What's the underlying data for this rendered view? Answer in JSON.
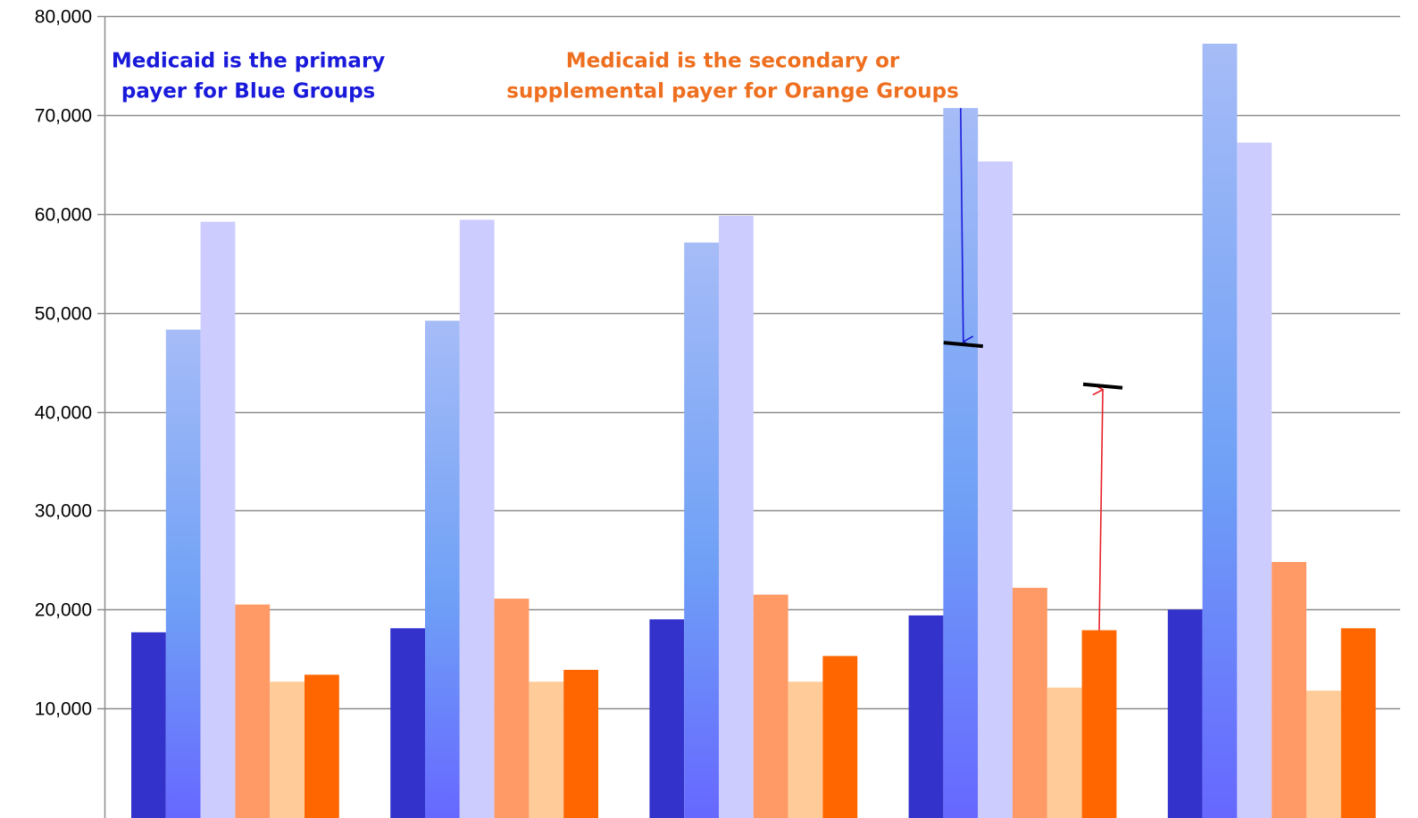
{
  "chart_data": {
    "type": "bar",
    "title": "",
    "xlabel": "",
    "ylabel": "",
    "ylim": [
      0,
      80000
    ],
    "yticks": [
      10000,
      20000,
      30000,
      40000,
      50000,
      60000,
      70000,
      80000
    ],
    "ytick_labels": [
      "10,000",
      "20,000",
      "30,000",
      "40,000",
      "50,000",
      "60,000",
      "70,000",
      "80,000"
    ],
    "grid": true,
    "legend": "none",
    "categories": [
      "",
      "",
      "",
      "",
      ""
    ],
    "series": [
      {
        "color": "#3333cc",
        "gradient": false,
        "values": [
          17700,
          18100,
          19000,
          19400,
          20000
        ]
      },
      {
        "color": "#6f9bf5",
        "gradient": true,
        "values": [
          48300,
          49200,
          57100,
          70700,
          77200
        ]
      },
      {
        "color": "#ccccff",
        "gradient": false,
        "values": [
          59200,
          59400,
          59800,
          65300,
          67200
        ]
      },
      {
        "color": "#ff9966",
        "gradient": false,
        "values": [
          20500,
          21100,
          21500,
          22200,
          24800
        ]
      },
      {
        "color": "#ffcc99",
        "gradient": false,
        "values": [
          12700,
          12700,
          12700,
          12100,
          11800
        ]
      },
      {
        "color": "#ff6600",
        "gradient": false,
        "values": [
          13400,
          13900,
          15300,
          17900,
          18100
        ]
      }
    ],
    "annotations": [
      {
        "lines": [
          "Medicaid is the primary",
          "payer for Blue Groups"
        ],
        "color": "#1a1adb",
        "anchor_category": 0,
        "anchor_value": 74800
      },
      {
        "lines": [
          "Medicaid is the secondary or",
          "supplemental payer for Orange Groups"
        ],
        "color": "#ee6f1f",
        "anchor_category": 2,
        "anchor_value": 74800
      }
    ],
    "arrows": [
      {
        "color": "#1a1adb",
        "category": 3,
        "series": 1,
        "from_value": 70700,
        "to_value": 46800,
        "marker_value": 46800
      },
      {
        "color": "#e8202a",
        "category": 3,
        "series": 5,
        "from_value": 17900,
        "to_value": 42500,
        "marker_value": 42600
      }
    ]
  }
}
